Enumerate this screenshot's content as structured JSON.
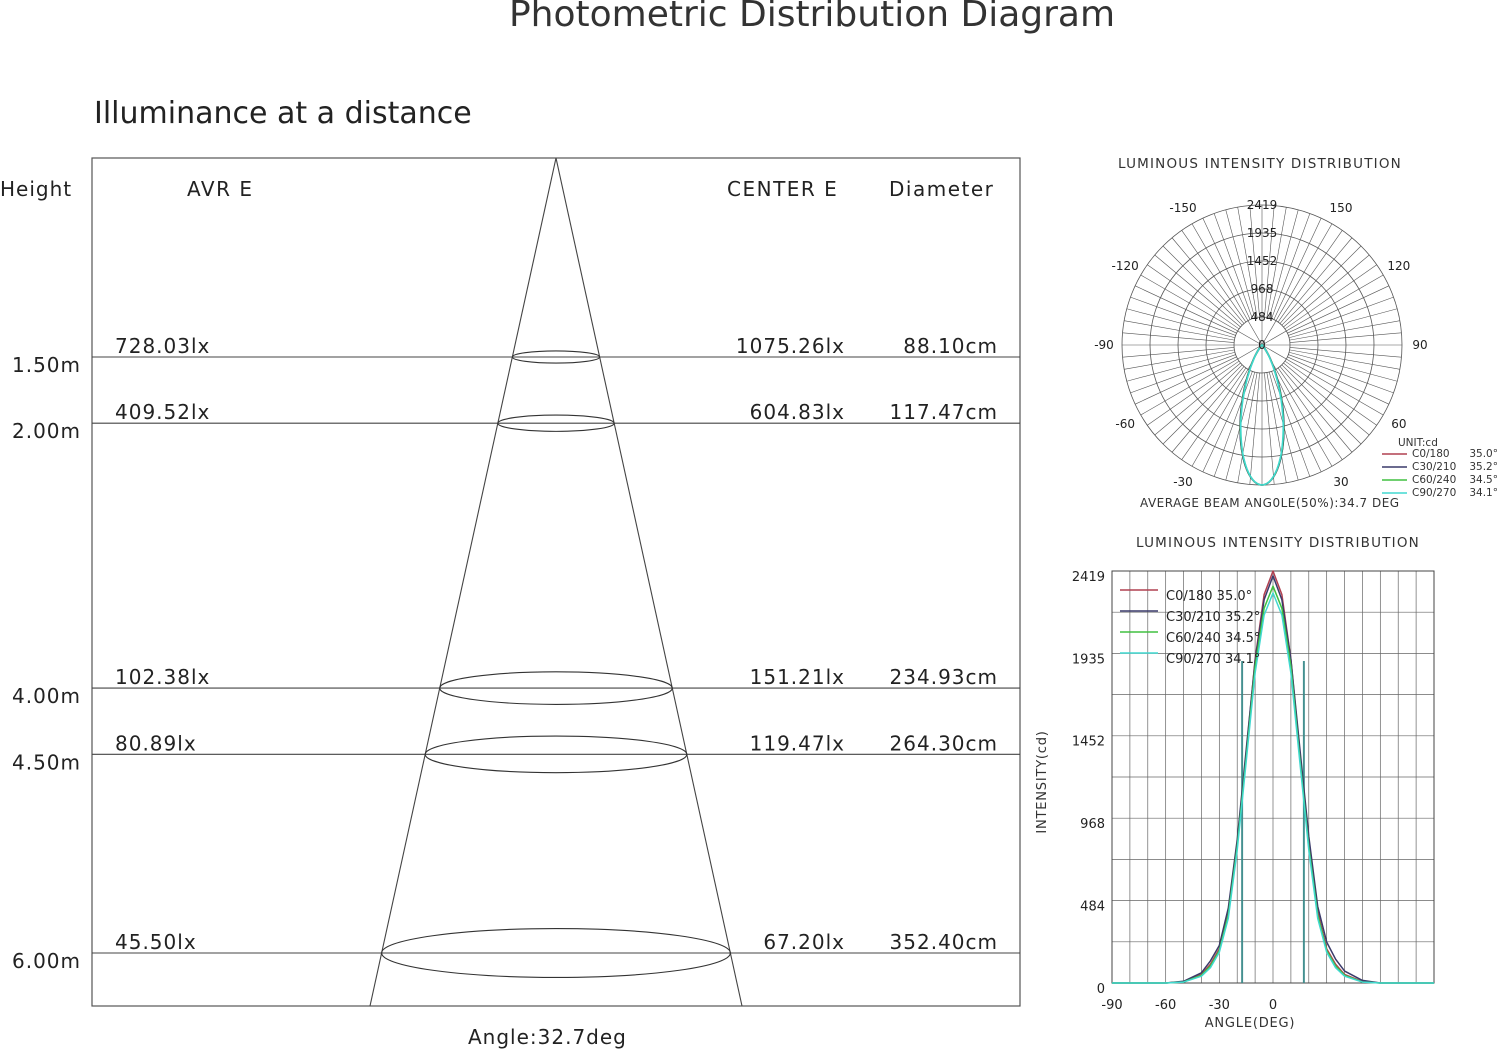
{
  "page": {
    "title": "Photometric Distribution Diagram",
    "subtitle": "Illuminance at a distance"
  },
  "chart_data": [
    {
      "type": "table",
      "headers": {
        "height": "Height",
        "avr": "AVR E",
        "center": "CENTER E",
        "diameter": "Diameter"
      },
      "rows": [
        {
          "height": "1.50m",
          "height_m": 1.5,
          "avr": "728.03lx",
          "center": "1075.26lx",
          "diameter": "88.10cm",
          "diameter_cm": 88.1
        },
        {
          "height": "2.00m",
          "height_m": 2.0,
          "avr": "409.52lx",
          "center": "604.83lx",
          "diameter": "117.47cm",
          "diameter_cm": 117.47
        },
        {
          "height": "4.00m",
          "height_m": 4.0,
          "avr": "102.38lx",
          "center": "151.21lx",
          "diameter": "234.93cm",
          "diameter_cm": 234.93
        },
        {
          "height": "4.50m",
          "height_m": 4.5,
          "avr": "80.89lx",
          "center": "119.47lx",
          "diameter": "264.30cm",
          "diameter_cm": 264.3
        },
        {
          "height": "6.00m",
          "height_m": 6.0,
          "avr": "45.50lx",
          "center": "67.20lx",
          "diameter": "352.40cm",
          "diameter_cm": 352.4
        }
      ],
      "angle_label": "Angle:32.7deg",
      "beam_angle_deg": 32.7
    },
    {
      "type": "line",
      "subtype": "polar",
      "title": "LUMINOUS INTENSITY DISTRIBUTION",
      "unit_label": "UNIT:cd",
      "footer": "AVERAGE BEAM ANG0LE(50%):34.7 DEG",
      "radial_ticks": [
        2419,
        1935,
        1452,
        968,
        484,
        0
      ],
      "angle_ticks": [
        -150,
        150,
        -120,
        120,
        -90,
        90,
        -60,
        60,
        -30,
        30
      ],
      "rmax": 2419,
      "series": [
        {
          "name": "C0/180",
          "beam": "35.0°",
          "beam_deg": 35.0,
          "color": "#b04050"
        },
        {
          "name": "C30/210",
          "beam": "35.2°",
          "beam_deg": 35.2,
          "color": "#3a3a6a"
        },
        {
          "name": "C60/240",
          "beam": "34.5°",
          "beam_deg": 34.5,
          "color": "#40c040"
        },
        {
          "name": "C90/270",
          "beam": "34.1°",
          "beam_deg": 34.1,
          "color": "#40d8d0"
        }
      ]
    },
    {
      "type": "line",
      "title": "LUMINOUS INTENSITY DISTRIBUTION",
      "xlabel": "ANGLE(DEG)",
      "ylabel": "INTENSITY(cd)",
      "xlim": [
        -90,
        90
      ],
      "ylim": [
        0,
        2419
      ],
      "x_ticks": [
        -90,
        -60,
        -30,
        0
      ],
      "y_ticks": [
        0,
        484,
        968,
        1452,
        1935,
        2419
      ],
      "legend": [
        "C0/180 35.0°",
        "C30/210 35.2°",
        "C60/240 34.5°",
        "C90/270 34.1°"
      ],
      "x": [
        -90,
        -60,
        -50,
        -40,
        -35,
        -30,
        -25,
        -20,
        -15,
        -10,
        -5,
        0,
        5,
        10,
        15,
        20,
        25,
        30,
        35,
        40,
        50,
        60,
        90
      ],
      "series": [
        {
          "name": "C0/180",
          "color": "#b04050",
          "peak": 2419,
          "values": [
            0,
            0,
            8,
            50,
            110,
            200,
            420,
            820,
            1350,
            1900,
            2280,
            2419,
            2280,
            1900,
            1350,
            820,
            420,
            200,
            110,
            50,
            8,
            0,
            0
          ]
        },
        {
          "name": "C30/210",
          "color": "#3a3a6a",
          "peak": 2390,
          "values": [
            0,
            0,
            10,
            60,
            130,
            220,
            440,
            840,
            1370,
            1890,
            2250,
            2390,
            2250,
            1900,
            1380,
            860,
            450,
            240,
            140,
            70,
            15,
            0,
            0
          ]
        },
        {
          "name": "C60/240",
          "color": "#40c040",
          "peak": 2330,
          "values": [
            0,
            0,
            6,
            45,
            100,
            190,
            400,
            800,
            1320,
            1860,
            2200,
            2330,
            2200,
            1860,
            1320,
            800,
            400,
            190,
            100,
            45,
            6,
            0,
            0
          ]
        },
        {
          "name": "C90/270",
          "color": "#40d8d0",
          "peak": 2290,
          "values": [
            0,
            0,
            5,
            40,
            90,
            180,
            380,
            780,
            1300,
            1820,
            2160,
            2290,
            2160,
            1820,
            1300,
            780,
            380,
            180,
            90,
            40,
            5,
            0,
            0
          ]
        }
      ]
    }
  ]
}
